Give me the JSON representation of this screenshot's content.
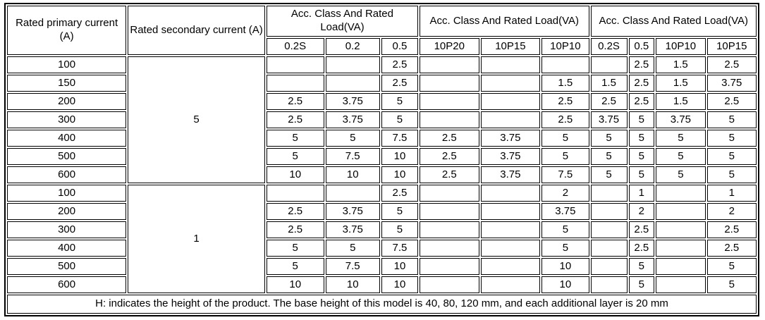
{
  "table": {
    "header": {
      "col1": "Rated primary current (A)",
      "col2": "Rated secondary current (A)",
      "groups": [
        {
          "label": "Acc. Class And Rated Load(VA)",
          "subcols": [
            "0.2S",
            "0.2",
            "0.5"
          ]
        },
        {
          "label": "Acc. Class And Rated Load(VA)",
          "subcols": [
            "10P20",
            "10P15",
            "10P10"
          ]
        },
        {
          "label": "Acc. Class And Rated Load(VA)",
          "subcols": [
            "0.2S",
            "0.5",
            "10P10",
            "10P15"
          ]
        }
      ]
    },
    "blocks": [
      {
        "secondary_current": "5",
        "rows": [
          {
            "primary": "100",
            "values": [
              "",
              "",
              "2.5",
              "",
              "",
              "",
              "",
              "2.5",
              "1.5",
              "2.5"
            ]
          },
          {
            "primary": "150",
            "values": [
              "",
              "",
              "2.5",
              "",
              "",
              "1.5",
              "1.5",
              "2.5",
              "1.5",
              "3.75"
            ]
          },
          {
            "primary": "200",
            "values": [
              "2.5",
              "3.75",
              "5",
              "",
              "",
              "2.5",
              "2.5",
              "2.5",
              "1.5",
              "2.5"
            ]
          },
          {
            "primary": "300",
            "values": [
              "2.5",
              "3.75",
              "5",
              "",
              "",
              "2.5",
              "3.75",
              "5",
              "3.75",
              "5"
            ]
          },
          {
            "primary": "400",
            "values": [
              "5",
              "5",
              "7.5",
              "2.5",
              "3.75",
              "5",
              "5",
              "5",
              "5",
              "5"
            ]
          },
          {
            "primary": "500",
            "values": [
              "5",
              "7.5",
              "10",
              "2.5",
              "3.75",
              "5",
              "5",
              "5",
              "5",
              "5"
            ]
          },
          {
            "primary": "600",
            "values": [
              "10",
              "10",
              "10",
              "2.5",
              "3.75",
              "7.5",
              "5",
              "5",
              "5",
              "5"
            ]
          }
        ]
      },
      {
        "secondary_current": "1",
        "rows": [
          {
            "primary": "100",
            "values": [
              "",
              "",
              "2.5",
              "",
              "",
              "2",
              "",
              "1",
              "",
              "1"
            ]
          },
          {
            "primary": "200",
            "values": [
              "2.5",
              "3.75",
              "5",
              "",
              "",
              "3.75",
              "",
              "2",
              "",
              "2"
            ]
          },
          {
            "primary": "300",
            "values": [
              "2.5",
              "3.75",
              "5",
              "",
              "",
              "5",
              "",
              "2.5",
              "",
              "2.5"
            ]
          },
          {
            "primary": "400",
            "values": [
              "5",
              "5",
              "7.5",
              "",
              "",
              "5",
              "",
              "2.5",
              "",
              "2.5"
            ]
          },
          {
            "primary": "500",
            "values": [
              "5",
              "7.5",
              "10",
              "",
              "",
              "10",
              "",
              "5",
              "",
              "5"
            ]
          },
          {
            "primary": "600",
            "values": [
              "10",
              "10",
              "10",
              "",
              "",
              "10",
              "",
              "5",
              "",
              "5"
            ]
          }
        ]
      }
    ],
    "footer": "H: indicates the height of the product. The base height of this model is 40, 80, 120 mm, and each additional layer is 20 mm"
  },
  "colors": {
    "border": "#000000",
    "background": "#ffffff",
    "text": "#000000"
  }
}
